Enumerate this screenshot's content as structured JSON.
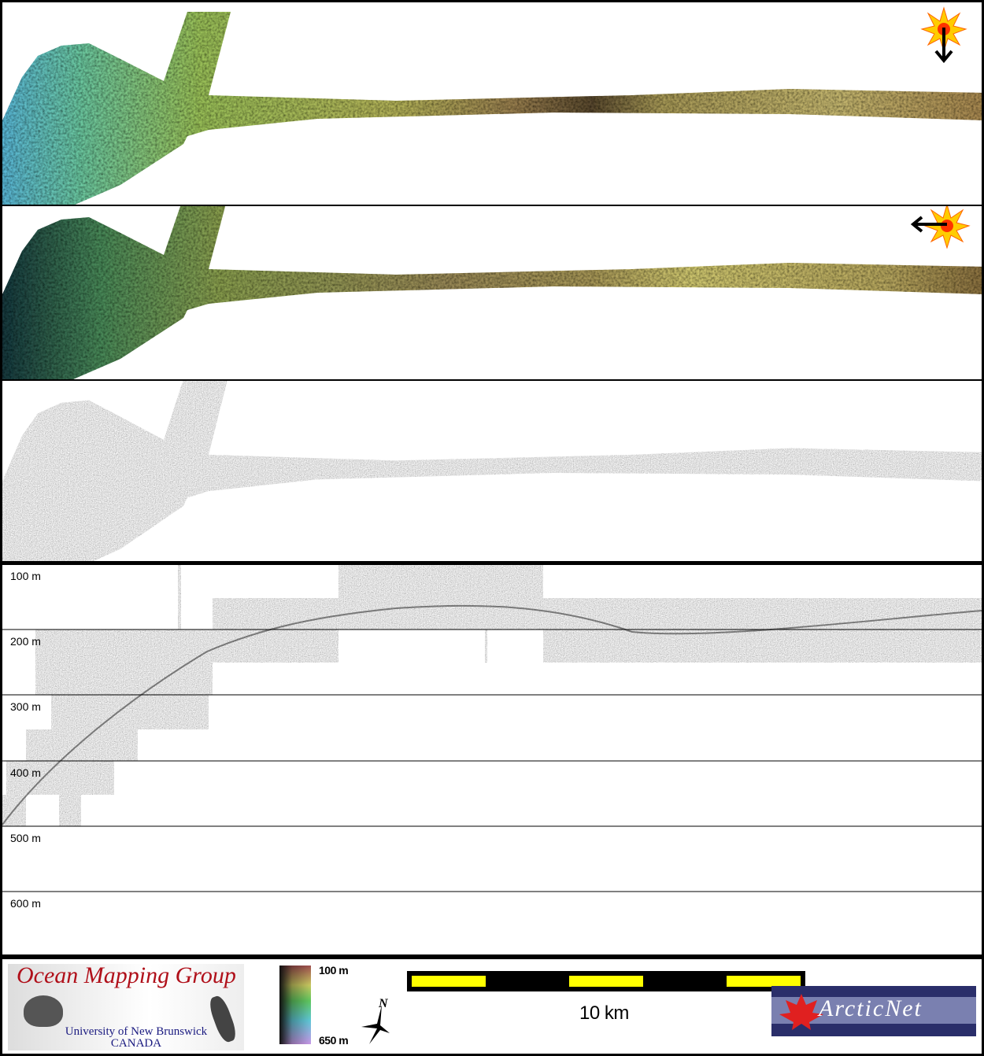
{
  "profile": {
    "depth_labels": [
      "100 m",
      "200 m",
      "300 m",
      "400 m",
      "500 m",
      "600 m"
    ]
  },
  "panels": [
    {
      "type": "shaded-relief",
      "sun_direction": "north"
    },
    {
      "type": "shaded-relief",
      "sun_direction": "east"
    },
    {
      "type": "backscatter"
    }
  ],
  "legend": {
    "logo_left": {
      "title": "Ocean Mapping Group",
      "line1": "University of New Brunswick",
      "line2": "CANADA"
    },
    "colorbar": {
      "top_label": "100 m",
      "bottom_label": "650 m"
    },
    "north_arrow": "N",
    "scale_bar": {
      "label": "10 km",
      "colors": [
        "#ffff00",
        "#000000"
      ]
    },
    "logo_right": {
      "title": "ArcticNet"
    }
  }
}
